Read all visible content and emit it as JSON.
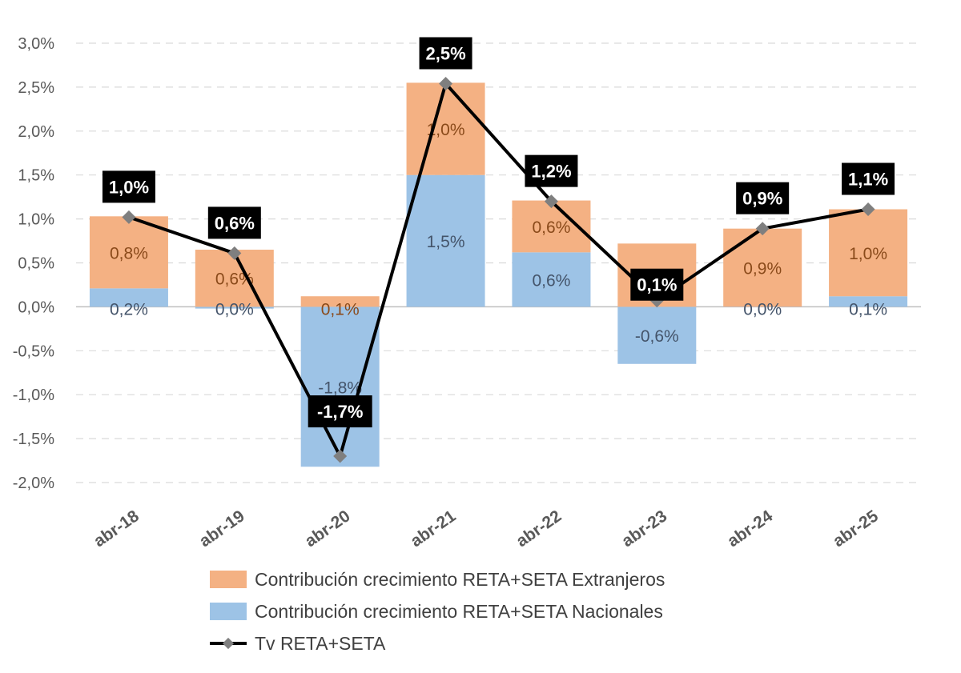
{
  "chart_data": {
    "type": "bar",
    "stacked": true,
    "categories": [
      "abr-18",
      "abr-19",
      "abr-20",
      "abr-21",
      "abr-22",
      "abr-23",
      "abr-24",
      "abr-25"
    ],
    "series": [
      {
        "name": "Contribución crecimiento RETA+SETA Nacionales",
        "kind": "bar",
        "color": "#9dc3e6",
        "values": [
          0.21,
          -0.02,
          -1.82,
          1.5,
          0.62,
          -0.65,
          0.0,
          0.12
        ],
        "labels": [
          "0,2%",
          "0,0%",
          "-1,8%",
          "1,5%",
          "0,6%",
          "-0,6%",
          "0,0%",
          "0,1%"
        ]
      },
      {
        "name": "Contribución crecimiento RETA+SETA Extranjeros",
        "kind": "bar",
        "color": "#f4b183",
        "values": [
          0.82,
          0.65,
          0.12,
          1.05,
          0.59,
          0.72,
          0.89,
          0.99
        ],
        "labels": [
          "0,8%",
          "0,6%",
          "0,1%",
          "1,0%",
          "0,6%",
          "0,7%",
          "0,9%",
          "1,0%"
        ]
      },
      {
        "name": "Tv RETA+SETA",
        "kind": "line",
        "color": "#000000",
        "marker_color": "#7f7f7f",
        "values": [
          1.02,
          0.61,
          -1.7,
          2.54,
          1.2,
          0.07,
          0.89,
          1.11
        ],
        "labels": [
          "1,0%",
          "0,6%",
          "-1,7%",
          "2,5%",
          "1,2%",
          "0,1%",
          "0,9%",
          "1,1%"
        ]
      }
    ],
    "yticks": [
      3.0,
      2.5,
      2.0,
      1.5,
      1.0,
      0.5,
      0.0,
      -0.5,
      -1.0,
      -1.5,
      -2.0
    ],
    "ytick_labels": [
      "3,0%",
      "2,5%",
      "2,0%",
      "1,5%",
      "1,0%",
      "0,5%",
      "0,0%",
      "-0,5%",
      "-1,0%",
      "-1,5%",
      "-2,0%"
    ],
    "ylim": [
      -2.0,
      3.0
    ],
    "grid": true,
    "legend_position": "bottom",
    "title": "",
    "xlabel": "",
    "ylabel": ""
  },
  "legend": {
    "items": [
      {
        "label": "Contribución crecimiento RETA+SETA Extranjeros",
        "color": "#f4b183"
      },
      {
        "label": "Contribución crecimiento RETA+SETA Nacionales",
        "color": "#9dc3e6"
      },
      {
        "label": "Tv RETA+SETA",
        "color": "#000000"
      }
    ]
  }
}
